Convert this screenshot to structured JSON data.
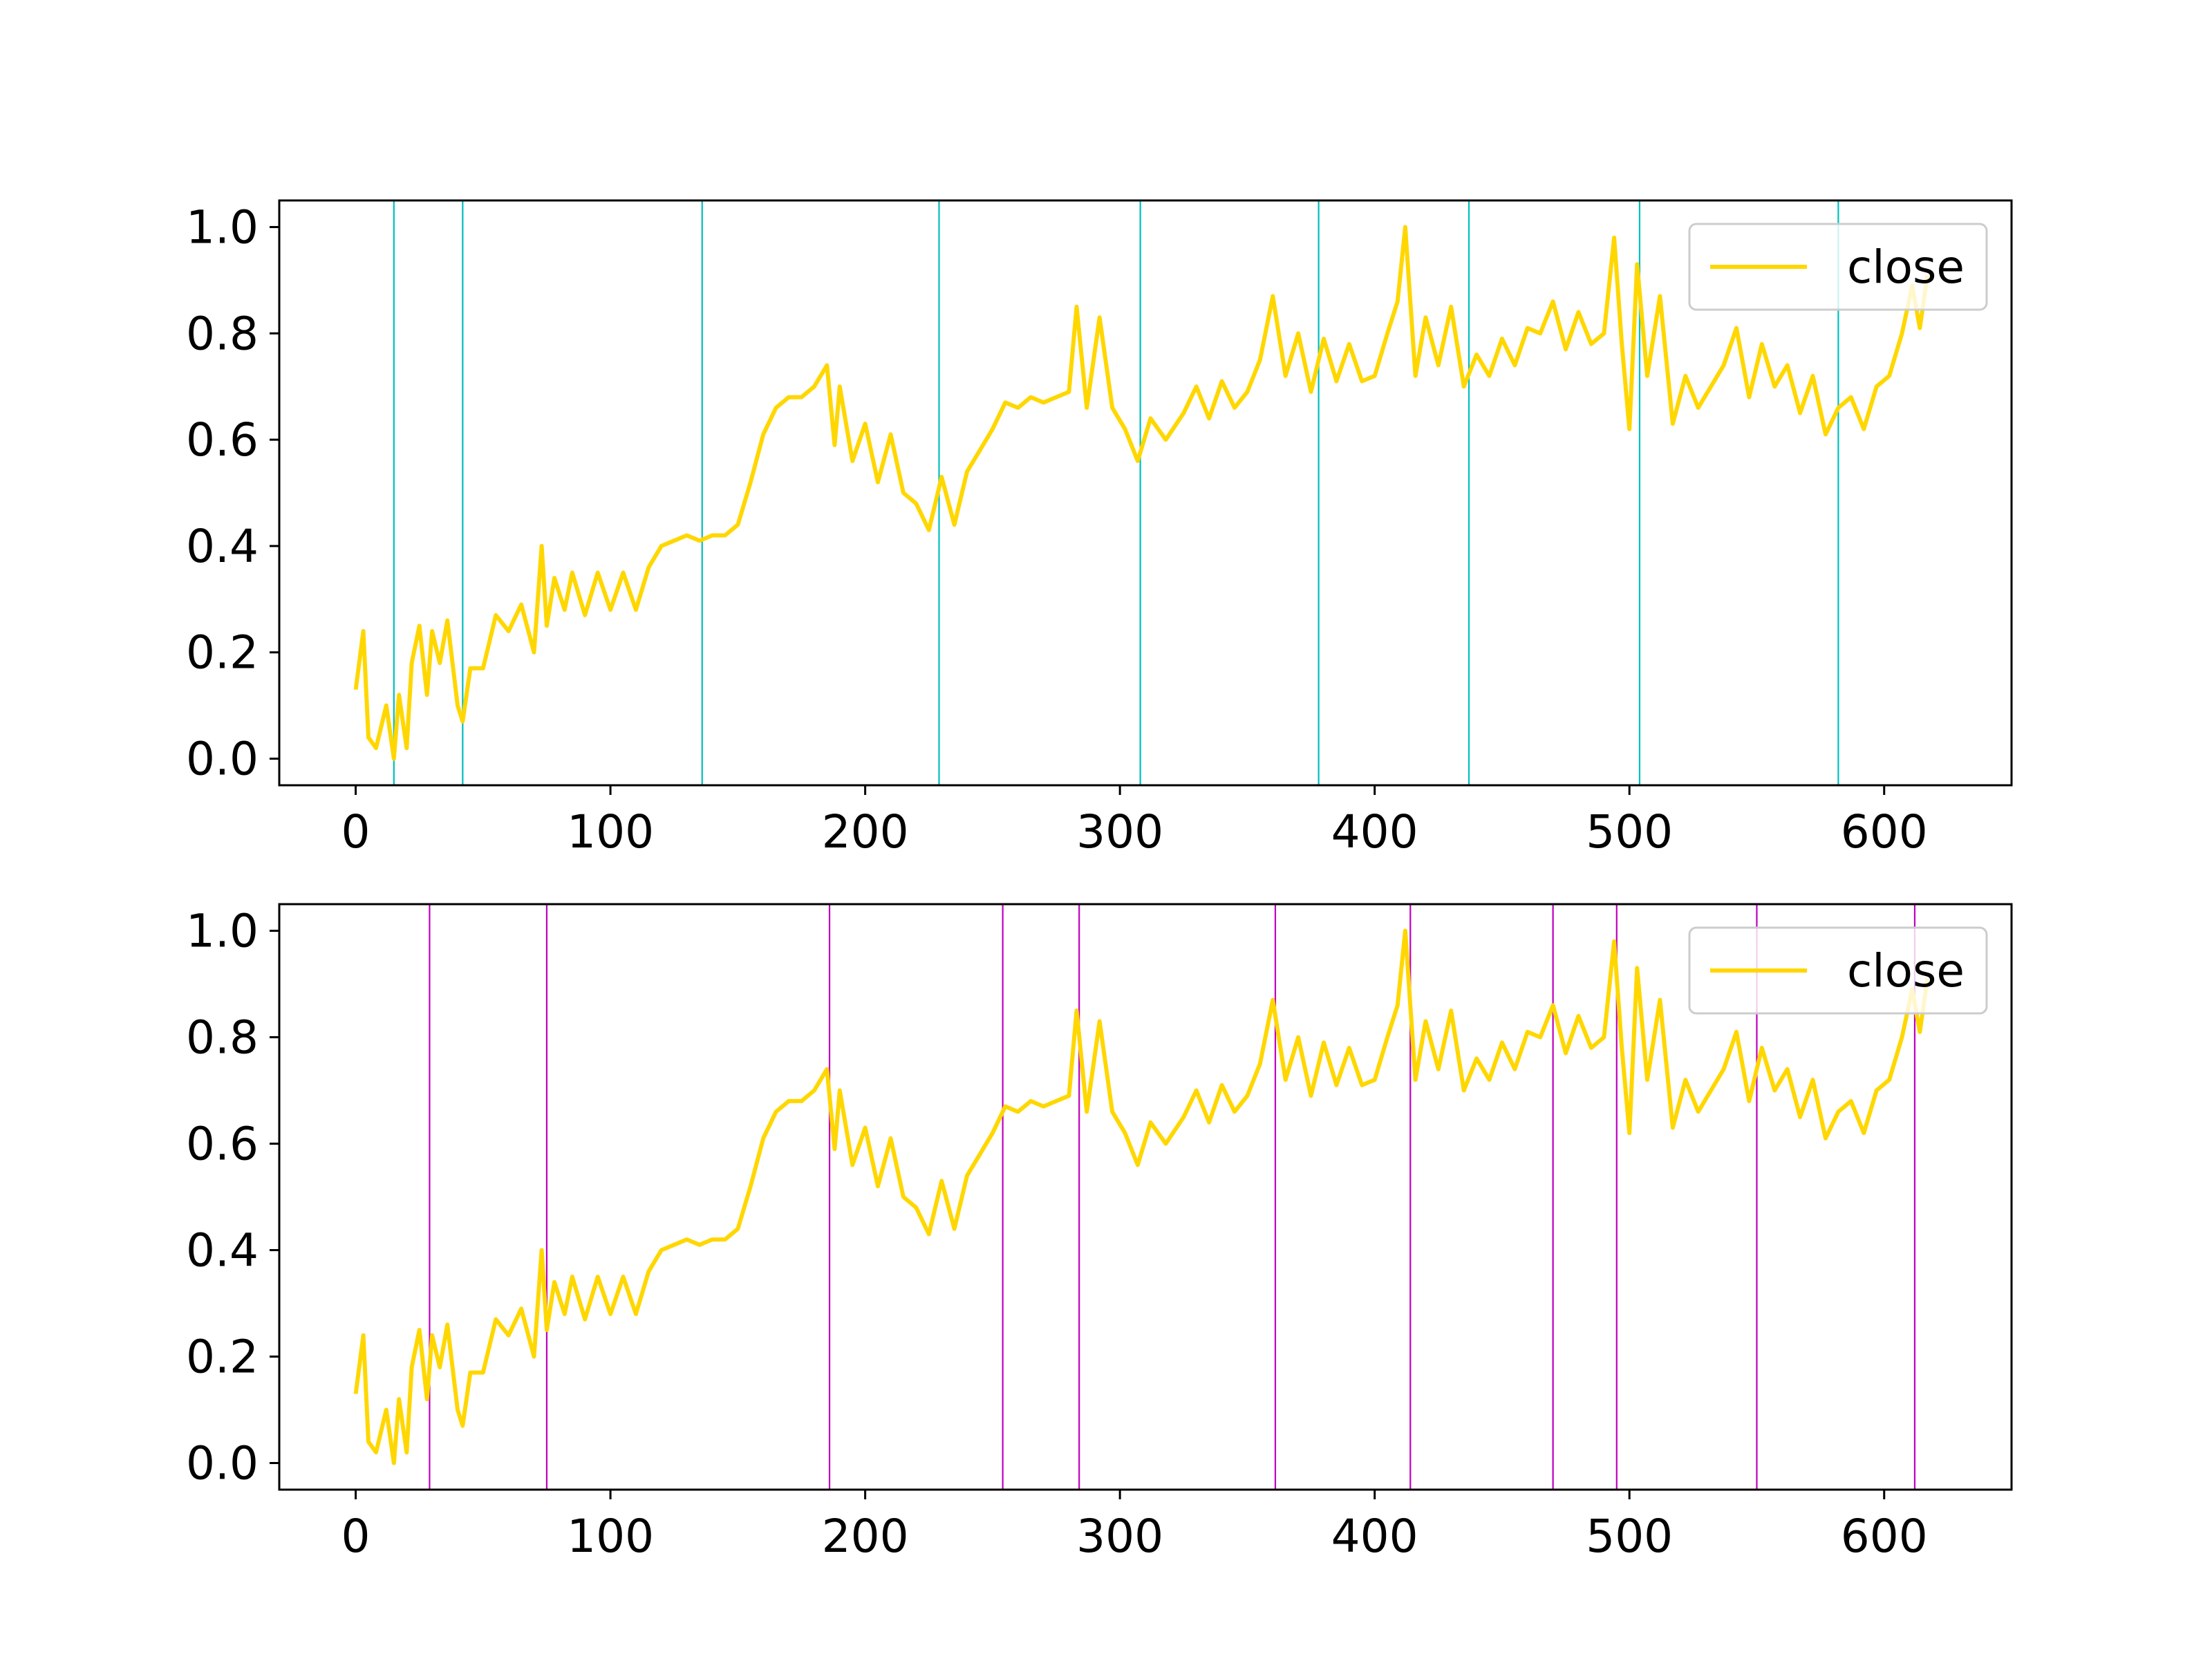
{
  "chart_data": [
    {
      "type": "line",
      "title": "",
      "xlabel": "",
      "ylabel": "",
      "xlim": [
        -30,
        650
      ],
      "ylim": [
        -0.05,
        1.05
      ],
      "xticks": [
        0,
        100,
        200,
        300,
        400,
        500,
        600
      ],
      "yticks": [
        0.0,
        0.2,
        0.4,
        0.6,
        0.8,
        1.0
      ],
      "grid": false,
      "legend": {
        "position": "upper right",
        "entries": [
          "close"
        ]
      },
      "series": [
        {
          "name": "close",
          "color": "#ffd700",
          "x": [
            0,
            3,
            5,
            8,
            12,
            15,
            17,
            20,
            22,
            25,
            28,
            30,
            33,
            36,
            40,
            42,
            45,
            50,
            55,
            60,
            65,
            70,
            73,
            75,
            78,
            82,
            85,
            90,
            95,
            100,
            105,
            110,
            115,
            120,
            125,
            130,
            135,
            140,
            145,
            150,
            155,
            160,
            165,
            170,
            175,
            180,
            185,
            188,
            190,
            195,
            200,
            205,
            210,
            215,
            220,
            225,
            230,
            235,
            240,
            245,
            250,
            255,
            260,
            265,
            270,
            275,
            280,
            283,
            287,
            292,
            297,
            302,
            307,
            312,
            318,
            325,
            330,
            335,
            340,
            345,
            350,
            355,
            360,
            365,
            370,
            375,
            380,
            385,
            390,
            395,
            400,
            405,
            409,
            412,
            416,
            420,
            425,
            430,
            435,
            440,
            445,
            450,
            455,
            460,
            465,
            470,
            475,
            480,
            485,
            490,
            494,
            497,
            500,
            503,
            507,
            512,
            517,
            522,
            527,
            532,
            537,
            542,
            547,
            552,
            557,
            562,
            567,
            572,
            577,
            582,
            587,
            592,
            597,
            602,
            607,
            611,
            614,
            617
          ],
          "y": [
            0.13,
            0.24,
            0.04,
            0.02,
            0.1,
            0.0,
            0.12,
            0.02,
            0.18,
            0.25,
            0.12,
            0.24,
            0.18,
            0.26,
            0.1,
            0.07,
            0.17,
            0.17,
            0.27,
            0.24,
            0.29,
            0.2,
            0.4,
            0.25,
            0.34,
            0.28,
            0.35,
            0.27,
            0.35,
            0.28,
            0.35,
            0.28,
            0.36,
            0.4,
            0.41,
            0.42,
            0.41,
            0.42,
            0.42,
            0.44,
            0.52,
            0.61,
            0.66,
            0.68,
            0.68,
            0.7,
            0.74,
            0.59,
            0.7,
            0.56,
            0.63,
            0.52,
            0.61,
            0.5,
            0.48,
            0.43,
            0.53,
            0.44,
            0.54,
            0.58,
            0.62,
            0.67,
            0.66,
            0.68,
            0.67,
            0.68,
            0.69,
            0.85,
            0.66,
            0.83,
            0.66,
            0.62,
            0.56,
            0.64,
            0.6,
            0.65,
            0.7,
            0.64,
            0.71,
            0.66,
            0.69,
            0.75,
            0.87,
            0.72,
            0.8,
            0.69,
            0.79,
            0.71,
            0.78,
            0.71,
            0.72,
            0.8,
            0.86,
            1.0,
            0.72,
            0.83,
            0.74,
            0.85,
            0.7,
            0.76,
            0.72,
            0.79,
            0.74,
            0.81,
            0.8,
            0.86,
            0.77,
            0.84,
            0.78,
            0.8,
            0.98,
            0.78,
            0.62,
            0.93,
            0.72,
            0.87,
            0.63,
            0.72,
            0.66,
            0.7,
            0.74,
            0.81,
            0.68,
            0.78,
            0.7,
            0.74,
            0.65,
            0.72,
            0.61,
            0.66,
            0.68,
            0.62,
            0.7,
            0.72,
            0.8,
            0.89,
            0.81,
            0.91
          ]
        }
      ],
      "vlines": {
        "color": "#00bfbf",
        "x": [
          15,
          42,
          136,
          229,
          308,
          378,
          437,
          504,
          582
        ]
      }
    },
    {
      "type": "line",
      "title": "",
      "xlabel": "",
      "ylabel": "",
      "xlim": [
        -30,
        650
      ],
      "ylim": [
        -0.05,
        1.05
      ],
      "xticks": [
        0,
        100,
        200,
        300,
        400,
        500,
        600
      ],
      "yticks": [
        0.0,
        0.2,
        0.4,
        0.6,
        0.8,
        1.0
      ],
      "grid": false,
      "legend": {
        "position": "upper right",
        "entries": [
          "close"
        ]
      },
      "series": [
        {
          "name": "close",
          "color": "#ffd700",
          "x": [
            0,
            3,
            5,
            8,
            12,
            15,
            17,
            20,
            22,
            25,
            28,
            30,
            33,
            36,
            40,
            42,
            45,
            50,
            55,
            60,
            65,
            70,
            73,
            75,
            78,
            82,
            85,
            90,
            95,
            100,
            105,
            110,
            115,
            120,
            125,
            130,
            135,
            140,
            145,
            150,
            155,
            160,
            165,
            170,
            175,
            180,
            185,
            188,
            190,
            195,
            200,
            205,
            210,
            215,
            220,
            225,
            230,
            235,
            240,
            245,
            250,
            255,
            260,
            265,
            270,
            275,
            280,
            283,
            287,
            292,
            297,
            302,
            307,
            312,
            318,
            325,
            330,
            335,
            340,
            345,
            350,
            355,
            360,
            365,
            370,
            375,
            380,
            385,
            390,
            395,
            400,
            405,
            409,
            412,
            416,
            420,
            425,
            430,
            435,
            440,
            445,
            450,
            455,
            460,
            465,
            470,
            475,
            480,
            485,
            490,
            494,
            497,
            500,
            503,
            507,
            512,
            517,
            522,
            527,
            532,
            537,
            542,
            547,
            552,
            557,
            562,
            567,
            572,
            577,
            582,
            587,
            592,
            597,
            602,
            607,
            611,
            614,
            617
          ],
          "y": [
            0.13,
            0.24,
            0.04,
            0.02,
            0.1,
            0.0,
            0.12,
            0.02,
            0.18,
            0.25,
            0.12,
            0.24,
            0.18,
            0.26,
            0.1,
            0.07,
            0.17,
            0.17,
            0.27,
            0.24,
            0.29,
            0.2,
            0.4,
            0.25,
            0.34,
            0.28,
            0.35,
            0.27,
            0.35,
            0.28,
            0.35,
            0.28,
            0.36,
            0.4,
            0.41,
            0.42,
            0.41,
            0.42,
            0.42,
            0.44,
            0.52,
            0.61,
            0.66,
            0.68,
            0.68,
            0.7,
            0.74,
            0.59,
            0.7,
            0.56,
            0.63,
            0.52,
            0.61,
            0.5,
            0.48,
            0.43,
            0.53,
            0.44,
            0.54,
            0.58,
            0.62,
            0.67,
            0.66,
            0.68,
            0.67,
            0.68,
            0.69,
            0.85,
            0.66,
            0.83,
            0.66,
            0.62,
            0.56,
            0.64,
            0.6,
            0.65,
            0.7,
            0.64,
            0.71,
            0.66,
            0.69,
            0.75,
            0.87,
            0.72,
            0.8,
            0.69,
            0.79,
            0.71,
            0.78,
            0.71,
            0.72,
            0.8,
            0.86,
            1.0,
            0.72,
            0.83,
            0.74,
            0.85,
            0.7,
            0.76,
            0.72,
            0.79,
            0.74,
            0.81,
            0.8,
            0.86,
            0.77,
            0.84,
            0.78,
            0.8,
            0.98,
            0.78,
            0.62,
            0.93,
            0.72,
            0.87,
            0.63,
            0.72,
            0.66,
            0.7,
            0.74,
            0.81,
            0.68,
            0.78,
            0.7,
            0.74,
            0.65,
            0.72,
            0.61,
            0.66,
            0.68,
            0.62,
            0.7,
            0.72,
            0.8,
            0.89,
            0.81,
            0.91
          ]
        }
      ],
      "vlines": {
        "color": "#bf00bf",
        "x": [
          29,
          75,
          186,
          254,
          284,
          361,
          414,
          470,
          495,
          550,
          612
        ]
      }
    }
  ]
}
